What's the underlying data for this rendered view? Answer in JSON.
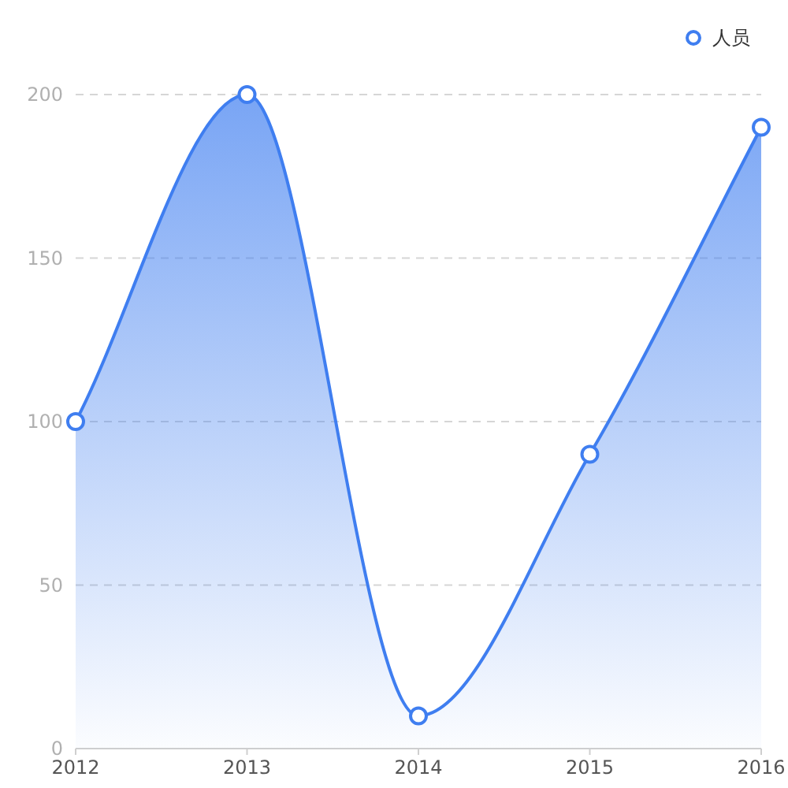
{
  "chart_data": {
    "type": "area",
    "categories": [
      "2012",
      "2013",
      "2014",
      "2015",
      "2016"
    ],
    "series": [
      {
        "name": "人员",
        "color": "#3f7ef0",
        "values": [
          100,
          200,
          10,
          90,
          190
        ]
      }
    ],
    "ylim": [
      0,
      200
    ],
    "yticks": [
      0,
      50,
      100,
      150,
      200
    ],
    "grid": "y",
    "legend": "top right",
    "marker": "circle",
    "line_style": "solid"
  }
}
